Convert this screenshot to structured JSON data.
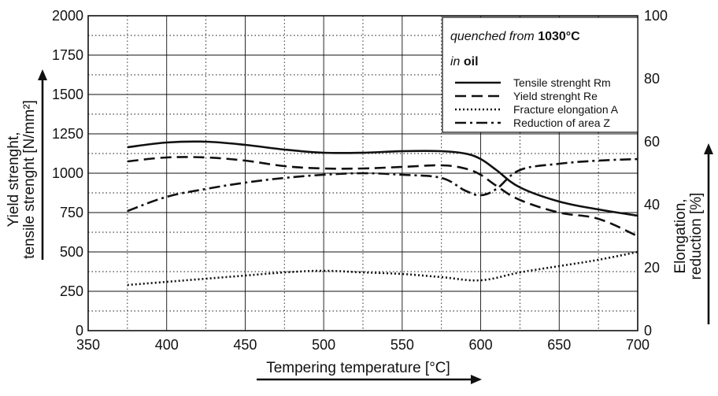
{
  "chart_data": {
    "type": "line",
    "xlabel": "Tempering temperature [°C]",
    "ylabel_left_line1": "Yield strenght,",
    "ylabel_left_line2": "tensile strenght [N/mm²]",
    "ylabel_right_line1": "Elongation,",
    "ylabel_right_line2": "reduction [%]",
    "xlim": [
      350,
      700
    ],
    "ylim_left": [
      0,
      2000
    ],
    "ylim_right": [
      0,
      100
    ],
    "grid": true,
    "x_ticks": [
      "350",
      "400",
      "450",
      "500",
      "550",
      "600",
      "650",
      "700"
    ],
    "y_left_ticks": [
      "0",
      "250",
      "500",
      "750",
      "1000",
      "1250",
      "1500",
      "1750",
      "2000"
    ],
    "y_right_ticks": [
      "0",
      "20",
      "40",
      "60",
      "80",
      "100"
    ],
    "legend": {
      "placement": "top-right",
      "condition_line1_italic": "quenched from ",
      "condition_line1_bold": "1030°C",
      "condition_line2_italic": "in ",
      "condition_line2_bold": "oil"
    },
    "series": [
      {
        "name": "Tensile strenght Rm",
        "axis": "left",
        "style": "solid",
        "x": [
          375,
          400,
          425,
          450,
          475,
          500,
          525,
          550,
          575,
          590,
          600,
          610,
          625,
          650,
          675,
          700
        ],
        "y": [
          1165,
          1195,
          1200,
          1180,
          1150,
          1130,
          1130,
          1140,
          1140,
          1125,
          1090,
          1020,
          910,
          820,
          770,
          730
        ]
      },
      {
        "name": "Yield strenght Re",
        "axis": "left",
        "style": "dashed",
        "x": [
          375,
          400,
          425,
          450,
          475,
          500,
          525,
          550,
          575,
          590,
          600,
          610,
          625,
          650,
          675,
          700
        ],
        "y": [
          1075,
          1100,
          1100,
          1080,
          1045,
          1030,
          1030,
          1040,
          1050,
          1030,
          990,
          920,
          830,
          750,
          710,
          600
        ]
      },
      {
        "name": "Fracture elongation A",
        "axis": "right",
        "style": "dotted",
        "x": [
          375,
          400,
          425,
          450,
          475,
          500,
          525,
          550,
          575,
          600,
          625,
          650,
          675,
          700
        ],
        "y": [
          14.5,
          15.5,
          16.5,
          17.5,
          18.5,
          19,
          18.5,
          18,
          17,
          16,
          18.5,
          20.5,
          22.5,
          25
        ]
      },
      {
        "name": "Reduction of area Z",
        "axis": "right",
        "style": "dashdot",
        "x": [
          375,
          400,
          425,
          450,
          475,
          500,
          525,
          550,
          575,
          590,
          600,
          610,
          625,
          650,
          675,
          700
        ],
        "y": [
          38,
          42.5,
          45,
          47,
          48.5,
          49.5,
          50,
          49.5,
          48.5,
          44.5,
          43,
          45,
          51,
          53,
          54,
          54.5
        ]
      }
    ]
  }
}
